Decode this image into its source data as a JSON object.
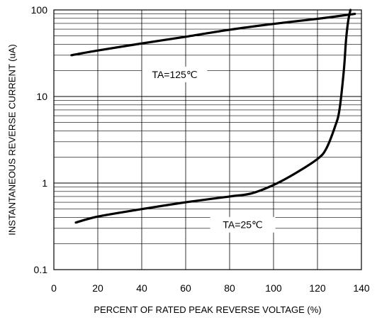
{
  "chart_data": {
    "type": "line",
    "title": "",
    "xlabel": "PERCENT OF RATED PEAK REVERSE VOLTAGE (%)",
    "ylabel": "INSTANTANEOUS REVERSE CURRENT (uA)",
    "xlim": [
      0,
      140
    ],
    "ylim": [
      0.1,
      100
    ],
    "yscale": "log",
    "grid": true,
    "x_ticks": [
      "0",
      "20",
      "40",
      "60",
      "80",
      "100",
      "120",
      "140"
    ],
    "y_ticks": [
      "0.1",
      "1",
      "10",
      "100"
    ],
    "colors": {
      "line": "#000000",
      "grid": "#000000",
      "background": "#ffffff"
    },
    "series": [
      {
        "label": "TA=125℃",
        "x": [
          8,
          20,
          40,
          60,
          80,
          100,
          120,
          137
        ],
        "y": [
          30,
          34,
          41,
          49,
          59,
          69,
          79,
          90
        ]
      },
      {
        "label": "TA=25℃",
        "x": [
          10,
          20,
          40,
          60,
          80,
          90,
          100,
          110,
          120,
          124,
          128,
          130,
          132,
          133,
          134,
          135
        ],
        "y": [
          0.35,
          0.41,
          0.5,
          0.6,
          0.7,
          0.76,
          0.95,
          1.3,
          1.9,
          2.5,
          4.5,
          7,
          20,
          45,
          75,
          100
        ]
      }
    ]
  }
}
